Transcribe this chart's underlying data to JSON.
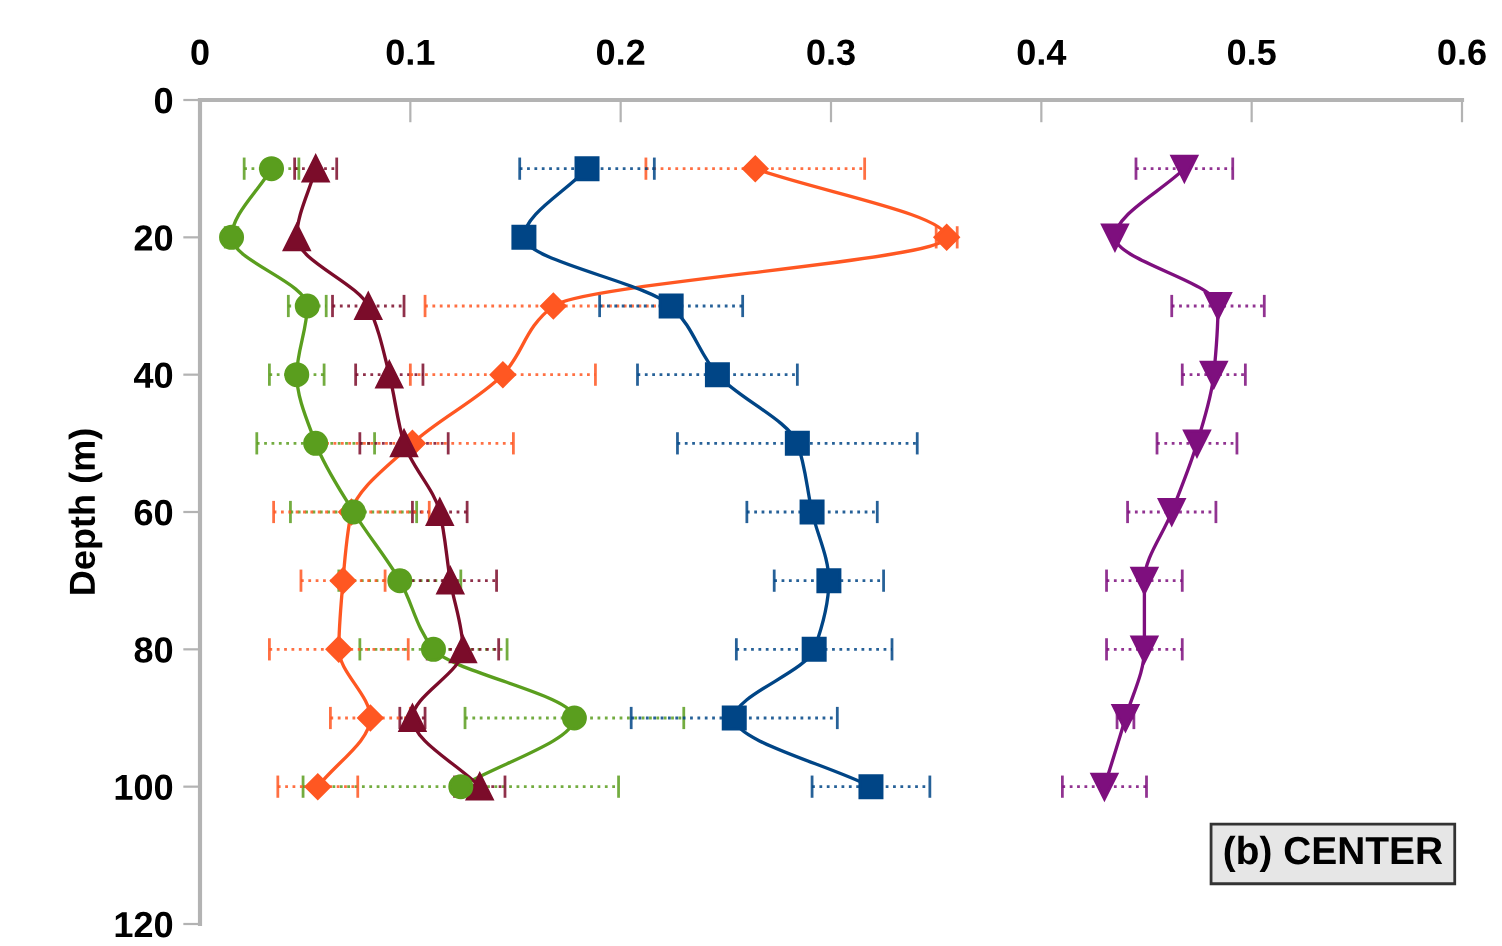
{
  "chart_data": {
    "type": "line",
    "orientation": "horizontal",
    "ylabel": "Depth (m)",
    "x": [
      10,
      20,
      30,
      40,
      50,
      60,
      70,
      80,
      90,
      100
    ],
    "xlim": [
      0,
      0.6
    ],
    "xticks": [
      0,
      0.1,
      0.2,
      0.3,
      0.4,
      0.5,
      0.6
    ],
    "ylim": [
      120,
      0
    ],
    "yticks": [
      0,
      20,
      40,
      60,
      80,
      100,
      120
    ],
    "grid": false,
    "legend": false,
    "line_style": "solid",
    "annotations": [
      "(b) CENTER"
    ],
    "series": [
      {
        "color": "#5a9e1e",
        "marker": "circle",
        "values": [
          0.034,
          0.015,
          0.051,
          0.046,
          0.055,
          0.073,
          0.095,
          0.111,
          0.178,
          0.124
        ],
        "errors": [
          0.013,
          0.003,
          0.009,
          0.013,
          0.028,
          0.03,
          0.029,
          0.035,
          0.052,
          0.075
        ]
      },
      {
        "color": "#7b0c2a",
        "marker": "triangle",
        "values": [
          0.055,
          0.046,
          0.08,
          0.09,
          0.097,
          0.114,
          0.119,
          0.125,
          0.101,
          0.133
        ],
        "errors": [
          0.01,
          null,
          0.017,
          0.016,
          0.021,
          0.013,
          0.022,
          0.017,
          0.006,
          0.012
        ]
      },
      {
        "color": "#ff5722",
        "marker": "diamond",
        "values": [
          0.264,
          0.355,
          0.168,
          0.144,
          0.101,
          0.072,
          0.068,
          0.066,
          0.081,
          0.056
        ],
        "errors": [
          0.052,
          0.005,
          0.061,
          0.044,
          0.048,
          0.037,
          0.02,
          0.033,
          0.019,
          0.019
        ]
      },
      {
        "color": "#004586",
        "marker": "square",
        "values": [
          0.184,
          0.154,
          0.224,
          0.246,
          0.284,
          0.291,
          0.299,
          0.292,
          0.254,
          0.319
        ],
        "errors": [
          0.032,
          null,
          0.034,
          0.038,
          0.057,
          0.031,
          0.026,
          0.037,
          0.049,
          0.028
        ]
      },
      {
        "color": "#7e0f7e",
        "marker": "triangle_down",
        "values": [
          0.468,
          0.435,
          0.484,
          0.482,
          0.474,
          0.462,
          0.449,
          0.449,
          0.44,
          0.43
        ],
        "errors": [
          0.023,
          null,
          0.022,
          0.015,
          0.019,
          0.021,
          0.018,
          0.018,
          0.004,
          0.02
        ]
      }
    ]
  }
}
